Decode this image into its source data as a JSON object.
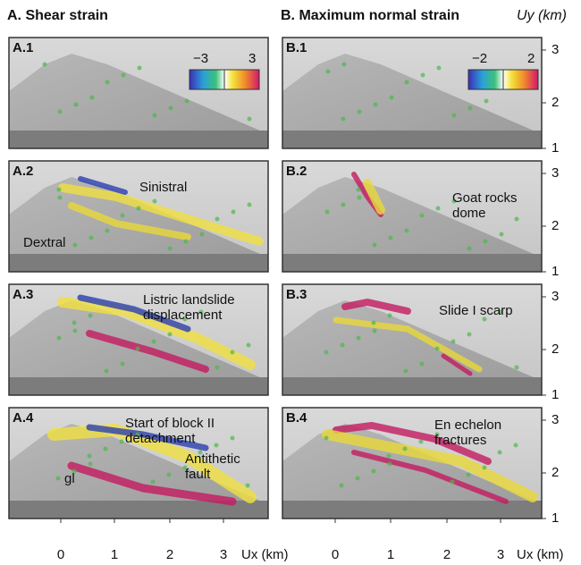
{
  "columns": [
    {
      "title": "A. Shear strain",
      "colorbar": {
        "min": "−3",
        "max": "3"
      },
      "panels": [
        {
          "label": "A.1",
          "annotations": []
        },
        {
          "label": "A.2",
          "annotations": [
            {
              "lines": [
                "Sinistral"
              ]
            },
            {
              "lines": [
                "Dextral"
              ]
            }
          ]
        },
        {
          "label": "A.3",
          "annotations": [
            {
              "lines": [
                "Listric landslide",
                "displacement"
              ]
            }
          ]
        },
        {
          "label": "A.4",
          "annotations": [
            {
              "lines": [
                "Start of block II",
                "detachment"
              ]
            },
            {
              "lines": [
                "Antithetic",
                "fault"
              ]
            },
            {
              "lines": [
                "gl"
              ]
            }
          ]
        }
      ]
    },
    {
      "title": "B. Maximum normal strain",
      "colorbar": {
        "min": "−2",
        "max": "2"
      },
      "panels": [
        {
          "label": "B.1",
          "annotations": []
        },
        {
          "label": "B.2",
          "annotations": [
            {
              "lines": [
                "Goat rocks",
                "dome"
              ]
            }
          ]
        },
        {
          "label": "B.3",
          "annotations": [
            {
              "lines": [
                "Slide I scarp"
              ]
            }
          ]
        },
        {
          "label": "B.4",
          "annotations": [
            {
              "lines": [
                "En echelon",
                "fractures"
              ]
            }
          ]
        }
      ]
    }
  ],
  "y_axis": {
    "label": "Uy (km)",
    "ticks": [
      "3",
      "2",
      "1"
    ]
  },
  "x_axis": {
    "label": "Ux (km)",
    "ticks": [
      "0",
      "1",
      "2",
      "3"
    ]
  }
}
